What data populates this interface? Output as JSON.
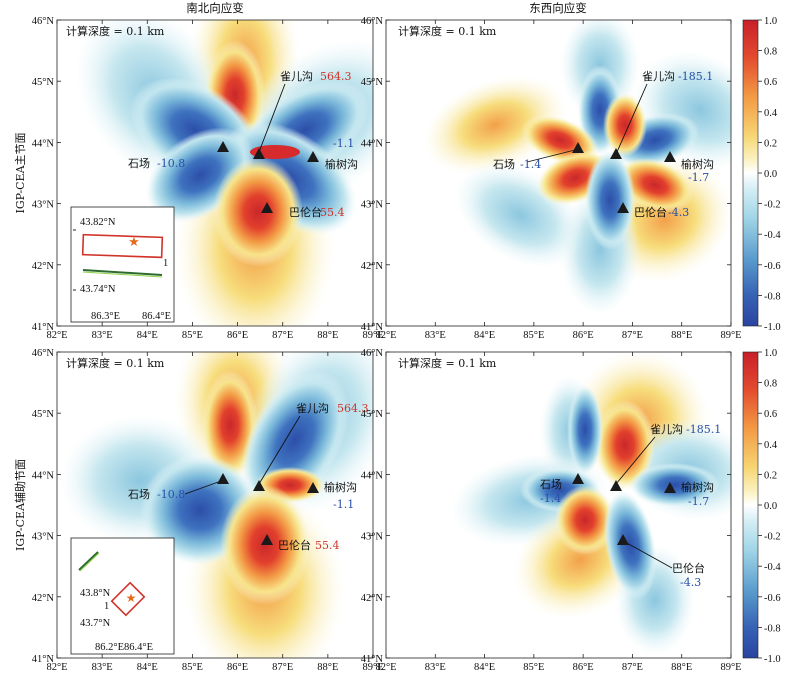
{
  "colors": {
    "red": "#c9272b",
    "orange": "#f08a3a",
    "yellow": "#f5e27a",
    "cyan": "#a9dbe8",
    "blue": "#2c4ea8",
    "label_blue": "#2a4fa8",
    "label_red": "#d0342a"
  },
  "row_labels": [
    "IGP-CEA主节面",
    "IGP-CEA辅助节面"
  ],
  "column_titles": [
    "南北向应变",
    "东西向应变"
  ],
  "depth_label": "计算深度 = 0.1 km",
  "lon_ticks": [
    "82°E",
    "83°E",
    "84°E",
    "85°E",
    "86°E",
    "87°E",
    "88°E",
    "89°E"
  ],
  "lat_ticks": [
    "41°N",
    "42°N",
    "43°N",
    "44°N",
    "45°N",
    "46°N"
  ],
  "colorbar": {
    "ticks": [
      "1.0",
      "0.8",
      "0.6",
      "0.4",
      "0.2",
      "0.0",
      "-0.2",
      "-0.4",
      "-0.6",
      "-0.8",
      "-1.0"
    ]
  },
  "panels": [
    {
      "id": "ns-main",
      "stations": [
        {
          "name": "石场",
          "value": "-10.8"
        },
        {
          "name": "雀儿沟",
          "value": "564.3"
        },
        {
          "name": "榆树沟",
          "value": "-1.1"
        },
        {
          "name": "巴伦台",
          "value": "55.4"
        }
      ]
    },
    {
      "id": "ew-main",
      "stations": [
        {
          "name": "石场",
          "value": "-1.4"
        },
        {
          "name": "雀儿沟",
          "value": "-185.1"
        },
        {
          "name": "榆树沟",
          "value": "-1.7"
        },
        {
          "name": "巴伦台",
          "value": "-4.3"
        }
      ]
    },
    {
      "id": "ns-aux",
      "stations": [
        {
          "name": "石场",
          "value": "-10.8"
        },
        {
          "name": "雀儿沟",
          "value": "564.3"
        },
        {
          "name": "榆树沟",
          "value": "-1.1"
        },
        {
          "name": "巴伦台",
          "value": "55.4"
        }
      ]
    },
    {
      "id": "ew-aux",
      "stations": [
        {
          "name": "石场",
          "value": "-1.4"
        },
        {
          "name": "雀儿沟",
          "value": "-185.1"
        },
        {
          "name": "榆树沟",
          "value": "-1.7"
        },
        {
          "name": "巴伦台",
          "value": "-4.3"
        }
      ]
    }
  ],
  "insets": [
    {
      "lat_top": "43.82°N",
      "lat_bottom": "43.74°N",
      "lon_left": "86.3°E",
      "lon_right": "86.4°E",
      "marker": "1"
    },
    {
      "lat_top": "43.8°N",
      "lat_bottom": "43.7°N",
      "lon_left": "86.2°E",
      "lon_right": "86.4°E",
      "marker": "1"
    }
  ]
}
